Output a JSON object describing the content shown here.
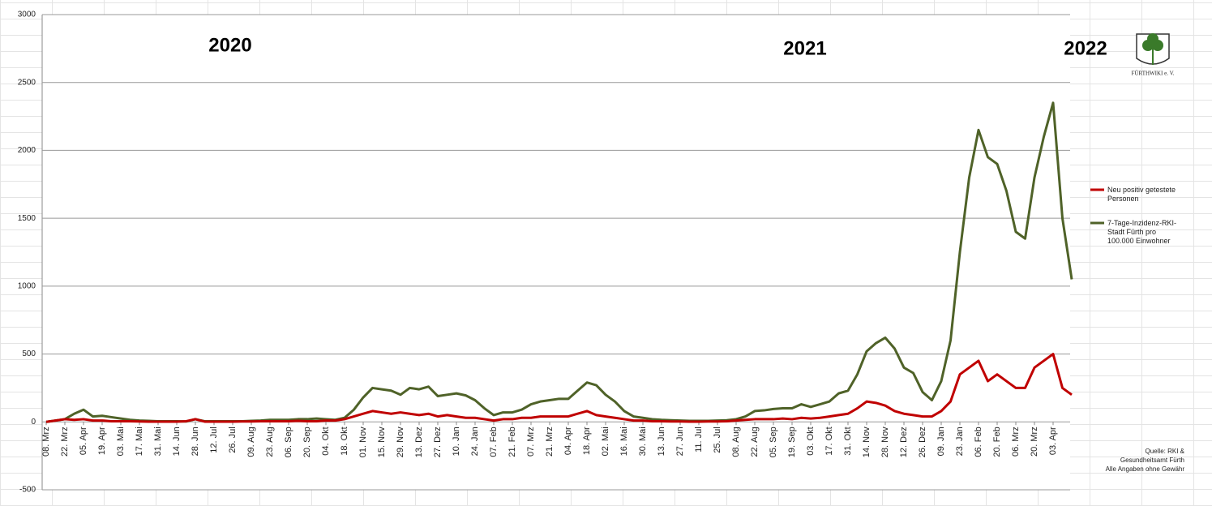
{
  "chart_data": {
    "type": "line",
    "categories": [
      "08. Mrz",
      null,
      "22. Mrz",
      null,
      "05. Apr",
      null,
      "19. Apr",
      null,
      "03. Mai",
      null,
      "17. Mai",
      null,
      "31. Mai",
      null,
      "14. Jun",
      null,
      "28. Jun",
      null,
      "12. Jul",
      null,
      "26. Jul",
      null,
      "09. Aug",
      null,
      "23. Aug",
      null,
      "06. Sep",
      null,
      "20. Sep",
      null,
      "04. Okt",
      null,
      "18. Okt",
      null,
      "01. Nov",
      null,
      "15. Nov",
      null,
      "29. Nov",
      null,
      "13. Dez",
      null,
      "27. Dez",
      null,
      "10. Jan",
      null,
      "24. Jan",
      null,
      "07. Feb",
      null,
      "21. Feb",
      null,
      "07. Mrz",
      null,
      "21. Mrz",
      null,
      "04. Apr",
      null,
      "18. Apr",
      null,
      "02. Mai",
      null,
      "16. Mai",
      null,
      "30. Mai",
      null,
      "13. Jun",
      null,
      "27. Jun",
      null,
      "11. Jul",
      null,
      "25. Jul",
      null,
      "08. Aug",
      null,
      "22. Aug",
      null,
      "05. Sep",
      null,
      "19. Sep",
      null,
      "03. Okt",
      null,
      "17. Okt",
      null,
      "31. Okt",
      null,
      "14. Nov",
      null,
      "28. Nov",
      null,
      "12. Dez",
      null,
      "26. Dez",
      null,
      "09. Jan",
      null,
      "23. Jan",
      null,
      "06. Feb",
      null,
      "20. Feb",
      null,
      "06. Mrz",
      null,
      "20. Mrz",
      null,
      "03. Apr",
      null,
      null
    ],
    "series": [
      {
        "name": "Neu positiv getestete Personen",
        "color": "#c00000",
        "values": [
          0,
          10,
          20,
          15,
          20,
          10,
          10,
          5,
          5,
          5,
          3,
          2,
          2,
          2,
          2,
          5,
          20,
          2,
          2,
          2,
          2,
          3,
          3,
          5,
          5,
          5,
          5,
          8,
          5,
          5,
          10,
          10,
          20,
          40,
          60,
          80,
          70,
          60,
          70,
          60,
          50,
          60,
          40,
          50,
          40,
          30,
          30,
          20,
          10,
          20,
          20,
          30,
          30,
          40,
          40,
          40,
          40,
          60,
          80,
          50,
          40,
          30,
          20,
          10,
          10,
          5,
          5,
          3,
          3,
          2,
          2,
          3,
          3,
          5,
          10,
          15,
          20,
          20,
          20,
          25,
          20,
          30,
          25,
          30,
          40,
          50,
          60,
          100,
          150,
          140,
          120,
          80,
          60,
          50,
          40,
          40,
          80,
          150,
          350,
          400,
          450,
          300,
          350,
          300,
          250,
          250,
          400,
          450,
          500,
          250,
          200
        ]
      },
      {
        "name": "7-Tage-Inzidenz-RKI-Stadt Fürth pro 100.000 Einwohner",
        "color": "#4f6228",
        "values": [
          0,
          10,
          20,
          60,
          90,
          40,
          45,
          35,
          25,
          15,
          10,
          8,
          5,
          5,
          5,
          3,
          20,
          5,
          5,
          5,
          5,
          5,
          8,
          10,
          15,
          15,
          15,
          20,
          20,
          25,
          20,
          15,
          30,
          90,
          180,
          250,
          240,
          230,
          200,
          250,
          240,
          260,
          190,
          200,
          210,
          195,
          160,
          100,
          50,
          70,
          70,
          90,
          130,
          150,
          160,
          170,
          170,
          230,
          290,
          270,
          200,
          150,
          80,
          40,
          30,
          20,
          15,
          12,
          10,
          8,
          8,
          8,
          10,
          12,
          20,
          40,
          80,
          85,
          95,
          100,
          100,
          130,
          110,
          130,
          150,
          210,
          230,
          350,
          520,
          580,
          620,
          540,
          400,
          360,
          220,
          160,
          300,
          600,
          1250,
          1800,
          2150,
          1950,
          1900,
          1700,
          1400,
          1350,
          1800,
          2100,
          2350,
          1500,
          1050
        ]
      }
    ],
    "ylim": [
      -500,
      3000
    ],
    "yticks": [
      -500,
      0,
      500,
      1000,
      1500,
      2000,
      2500,
      3000
    ],
    "grid": true,
    "year_labels": [
      "2020",
      "2021",
      "2022"
    ],
    "logo_text": "FÜRTHWIKI e. V.",
    "source": [
      "Quelle: RKI &",
      "Gesundheitsamt Fürth",
      "Alle Angaben ohne Gewähr"
    ]
  }
}
